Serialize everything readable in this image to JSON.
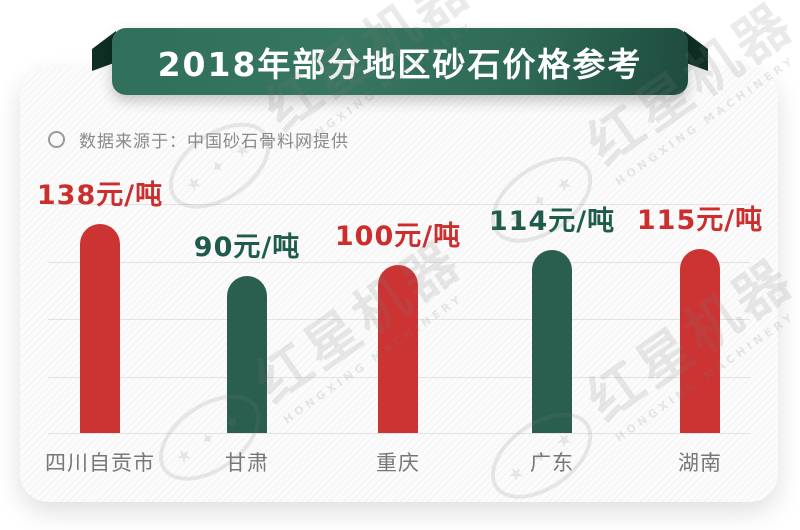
{
  "header": {
    "title": "2018年部分地区砂石价格参考"
  },
  "source_note": {
    "text": "数据来源于：中国砂石骨料网提供"
  },
  "watermark": {
    "brand": "红星机器",
    "brand_en": "HONGXING MACHINERY",
    "emblem_stars": "★ ✦ ★"
  },
  "chart_data": {
    "type": "bar",
    "title": "2018年部分地区砂石价格参考",
    "source": "中国砂石骨料网提供",
    "categories": [
      "四川自贡市",
      "甘肃",
      "重庆",
      "广东",
      "湖南"
    ],
    "values": [
      138,
      90,
      100,
      114,
      115
    ],
    "unit": "元/吨",
    "value_labels": [
      "138元/吨",
      "90元/吨",
      "100元/吨",
      "114元/吨",
      "115元/吨"
    ],
    "bar_colors": [
      "#cc3333",
      "#2a5f50",
      "#cc3333",
      "#2a5f50",
      "#cc3333"
    ],
    "value_label_colors": [
      "#cc2e2e",
      "#1f5b4b",
      "#cc2e2e",
      "#1f5b4b",
      "#cc2e2e"
    ],
    "xlabel": "",
    "ylabel": "",
    "grid": true,
    "legend": false,
    "ylim": [
      0,
      160
    ]
  },
  "colors": {
    "ribbon_green_light": "#377660",
    "ribbon_green_dark": "#1e4b3e",
    "ribbon_flap": "#0e2f23",
    "bar_red": "#cc3333",
    "bar_green": "#2a5f50",
    "grid_line": "#e2e2e2",
    "category_label": "#777777",
    "source_text": "#8a8a8a",
    "card_background": "#fbfbfb"
  }
}
